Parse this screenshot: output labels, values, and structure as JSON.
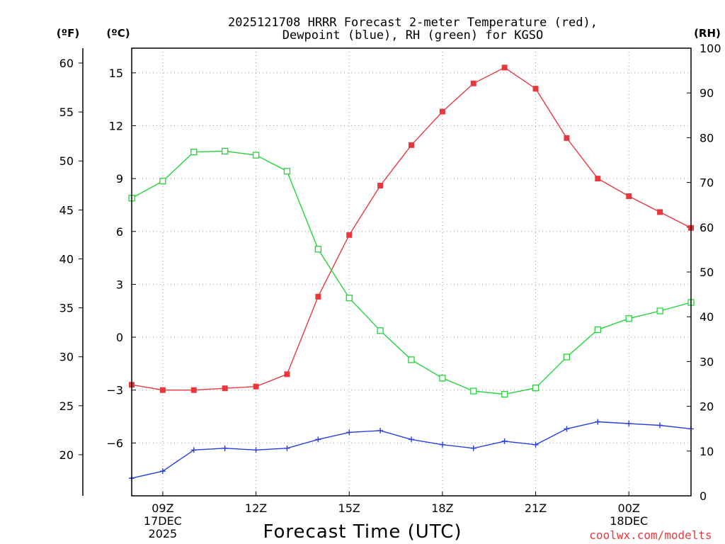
{
  "title_line1": "2025121708 HRRR Forecast 2-meter Temperature (red),",
  "title_line2": "Dewpoint (blue), RH (green) for KGSO",
  "watermark": "coolwx.com/modelts",
  "chart_data": {
    "type": "line",
    "title": "2025121708 HRRR Forecast 2-meter Temperature (red), Dewpoint (blue), RH (green) for KGSO",
    "xlabel": "Forecast Time (UTC)",
    "x": [
      "08Z",
      "09Z",
      "10Z",
      "11Z",
      "12Z",
      "13Z",
      "14Z",
      "15Z",
      "16Z",
      "17Z",
      "18Z",
      "19Z",
      "20Z",
      "21Z",
      "22Z",
      "23Z",
      "00Z",
      "01Z",
      "02Z"
    ],
    "xlim": [
      0,
      18
    ],
    "x_ticks": [
      {
        "index": 1,
        "lines": [
          "09Z",
          "17DEC",
          "2025"
        ]
      },
      {
        "index": 4,
        "lines": [
          "12Z"
        ]
      },
      {
        "index": 7,
        "lines": [
          "15Z"
        ]
      },
      {
        "index": 10,
        "lines": [
          "18Z"
        ]
      },
      {
        "index": 13,
        "lines": [
          "21Z"
        ]
      },
      {
        "index": 16,
        "lines": [
          "00Z",
          "18DEC"
        ]
      }
    ],
    "axes": {
      "celsius": {
        "label": "(ºC)",
        "lim": [
          -9,
          16.4
        ],
        "ticks": [
          15,
          12,
          9,
          6,
          3,
          0,
          -3,
          -6
        ]
      },
      "fahrenheit": {
        "label": "(ºF)",
        "ticks": [
          60,
          55,
          50,
          45,
          40,
          35,
          30,
          25,
          20
        ]
      },
      "rh": {
        "label": "(RH)",
        "lim": [
          0,
          100
        ],
        "ticks": [
          100,
          90,
          80,
          70,
          60,
          50,
          40,
          30,
          20,
          10,
          0
        ]
      }
    },
    "grid": true,
    "series": [
      {
        "name": "Temperature",
        "axis": "celsius",
        "color": "#e8383d",
        "marker": "filled-square",
        "values": [
          -2.7,
          -3.0,
          -3.0,
          -2.9,
          -2.8,
          -2.1,
          2.3,
          5.8,
          8.6,
          10.9,
          12.8,
          14.4,
          15.3,
          14.1,
          11.3,
          9.0,
          8.0,
          7.1,
          6.2
        ]
      },
      {
        "name": "Dewpoint",
        "axis": "celsius",
        "color": "#2a3fe0",
        "marker": "plus",
        "values": [
          -8.0,
          -7.6,
          -6.4,
          -6.3,
          -6.4,
          -6.3,
          -5.8,
          -5.4,
          -5.3,
          -5.8,
          -6.1,
          -6.3,
          -5.9,
          -6.1,
          -5.2,
          -4.8,
          -4.9,
          -5.0,
          -5.2
        ]
      },
      {
        "name": "RH",
        "axis": "rh",
        "color": "#22d43a",
        "marker": "open-square",
        "values": [
          66.5,
          70.3,
          76.8,
          77.0,
          76.1,
          72.5,
          55.1,
          44.2,
          36.9,
          30.4,
          26.3,
          23.4,
          22.7,
          24.1,
          31.0,
          37.1,
          39.6,
          41.3,
          43.2
        ]
      }
    ]
  }
}
